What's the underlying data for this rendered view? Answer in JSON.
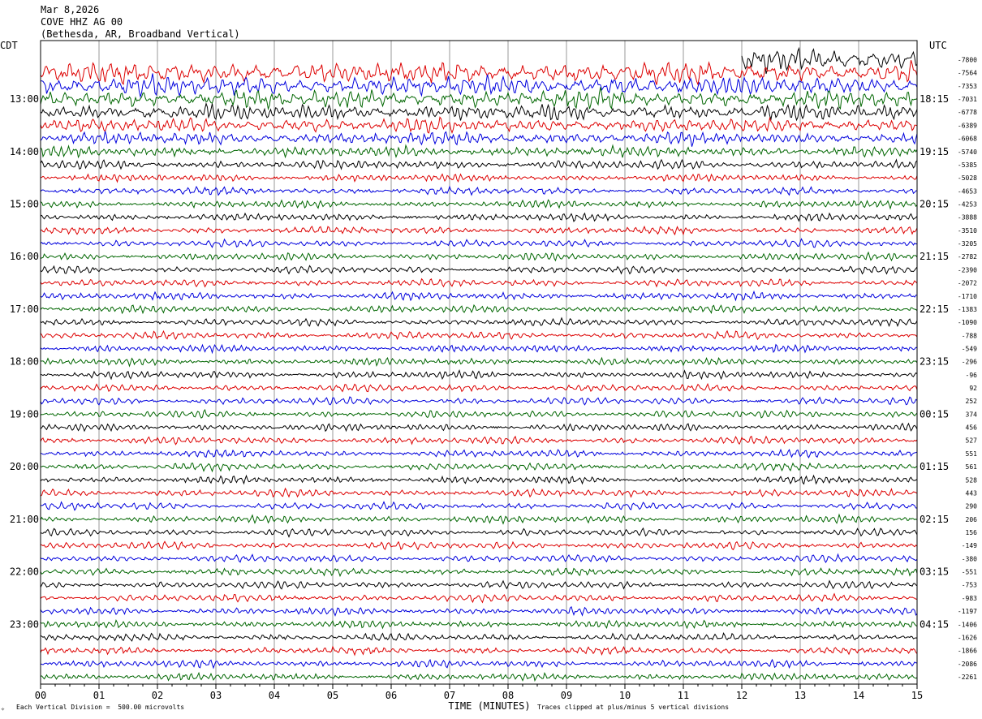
{
  "header": {
    "date": "Mar 8,2026",
    "station": "COVE HHZ AG 00",
    "location": "(Bethesda, AR, Broadband Vertical)"
  },
  "footer": {
    "scale_note": "Each Vertical Division =  500.00 microvolts",
    "clip_note": "Traces clipped at plus/minus 5 vertical divisions",
    "corner_mark": "✧"
  },
  "chart_data": {
    "type": "line",
    "title": "COVE HHZ AG 00",
    "xlabel": "TIME (MINUTES)",
    "x_ticks": [
      "00",
      "01",
      "02",
      "03",
      "04",
      "05",
      "06",
      "07",
      "08",
      "09",
      "10",
      "11",
      "12",
      "13",
      "14",
      "15"
    ],
    "xlim": [
      0,
      15
    ],
    "left_axis_label": "CDT",
    "right_axis_label": "UTC",
    "left_time_labels": [
      "13:00",
      "14:00",
      "15:00",
      "16:00",
      "17:00",
      "18:00",
      "19:00",
      "20:00",
      "21:00",
      "22:00",
      "23:00"
    ],
    "right_time_labels": [
      "18:15",
      "19:15",
      "20:15",
      "21:15",
      "22:15",
      "23:15",
      "00:15",
      "01:15",
      "02:15",
      "03:15",
      "04:15"
    ],
    "trace_count": 48,
    "traces_per_hour": 4,
    "minutes_per_trace": 15,
    "trace_colors": [
      "#000000",
      "#dd0000",
      "#0000dd",
      "#006600"
    ],
    "trace_offsets": [
      "-7800",
      "-7564",
      "-7353",
      "-7031",
      "-6778",
      "-6389",
      "-6068",
      "-5740",
      "-5385",
      "-5028",
      "-4653",
      "-4253",
      "-3888",
      "-3510",
      "-3205",
      "-2782",
      "-2390",
      "-2072",
      "-1710",
      "-1383",
      "-1090",
      "-788",
      "-549",
      "-296",
      "-96",
      "92",
      "252",
      "374",
      "456",
      "527",
      "551",
      "561",
      "528",
      "443",
      "290",
      "206",
      "156",
      "-149",
      "-380",
      "-551",
      "-753",
      "-983",
      "-1197",
      "-1406",
      "-1626",
      "-1866",
      "-2086",
      "-2261"
    ],
    "gridlines": "vertical, every minute"
  }
}
